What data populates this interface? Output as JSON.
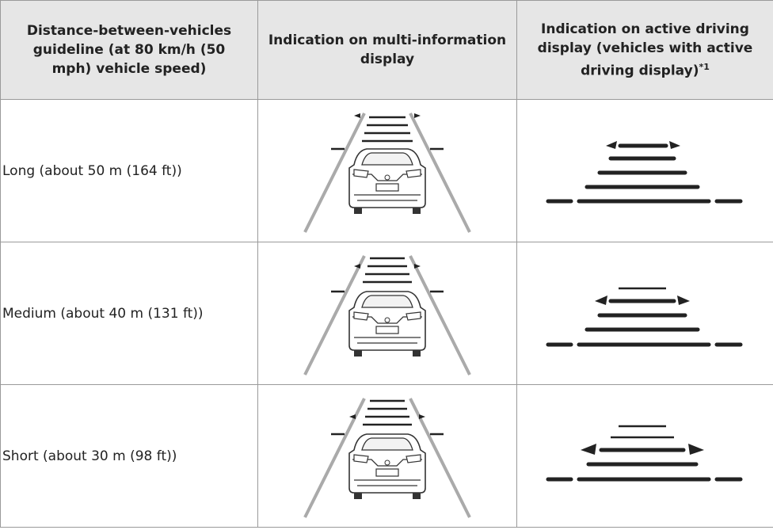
{
  "table": {
    "columns": [
      "Distance-between-vehicles guideline (at 80 km/h (50 mph) vehicle speed)",
      "Indication on multi-information display",
      "Indication on active driving display (vehicles with active driving display)"
    ],
    "column_note": "*1",
    "rows": [
      {
        "label": "Long (about 50 m (164 ft))"
      },
      {
        "label": "Medium (about 40 m (131 ft))"
      },
      {
        "label": "Short (about 30 m (98 ft))"
      }
    ]
  }
}
